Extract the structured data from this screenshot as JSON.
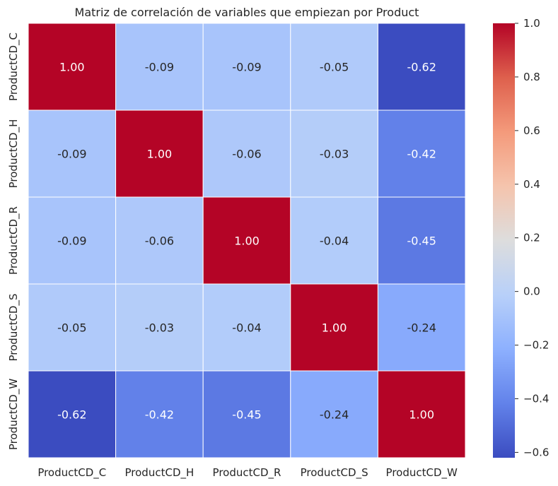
{
  "chart_data": {
    "type": "heatmap",
    "title": "Matriz de correlación de variables que empiezan por Product",
    "xlabel": "",
    "ylabel": "",
    "rows": [
      "ProductCD_C",
      "ProductCD_H",
      "ProductCD_R",
      "ProductCD_S",
      "ProductCD_W"
    ],
    "columns": [
      "ProductCD_C",
      "ProductCD_H",
      "ProductCD_R",
      "ProductCD_S",
      "ProductCD_W"
    ],
    "values": [
      [
        1.0,
        -0.09,
        -0.09,
        -0.05,
        -0.62
      ],
      [
        -0.09,
        1.0,
        -0.06,
        -0.03,
        -0.42
      ],
      [
        -0.09,
        -0.06,
        1.0,
        -0.04,
        -0.45
      ],
      [
        -0.05,
        -0.03,
        -0.04,
        1.0,
        -0.24
      ],
      [
        -0.62,
        -0.42,
        -0.45,
        -0.24,
        1.0
      ]
    ],
    "value_format": "0.00",
    "colormap": "coolwarm",
    "color_range": [
      -0.62,
      1.0
    ],
    "colorbar_ticks": [
      1.0,
      0.8,
      0.6,
      0.4,
      0.2,
      0.0,
      -0.2,
      -0.4,
      -0.6
    ],
    "colorbar_tick_labels": [
      "1.0",
      "0.8",
      "0.6",
      "0.4",
      "0.2",
      "0.0",
      "−0.2",
      "−0.4",
      "−0.6"
    ],
    "grid": false,
    "cell_separator_color": "#ffffff"
  }
}
